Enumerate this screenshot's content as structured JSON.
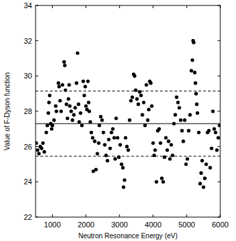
{
  "chart_data": {
    "type": "scatter",
    "x_label": "Neutron Resonance Energy (eV)",
    "y_label": "Value of F-Dyson function",
    "xlim": [
      500,
      6000
    ],
    "ylim": [
      22,
      34
    ],
    "xticks": [
      1000,
      2000,
      3000,
      4000,
      5000,
      6000
    ],
    "yticks": [
      22,
      24,
      26,
      28,
      30,
      32,
      34
    ],
    "grid": false,
    "series": [
      {
        "type": "scatter",
        "color": "#000000",
        "marker": "circle",
        "x": [
          520,
          560,
          600,
          640,
          680,
          720,
          760,
          820,
          850,
          880,
          900,
          920,
          950,
          980,
          1000,
          1050,
          1100,
          1120,
          1180,
          1200,
          1230,
          1260,
          1300,
          1350,
          1370,
          1390,
          1420,
          1450,
          1480,
          1500,
          1520,
          1560,
          1600,
          1640,
          1680,
          1720,
          1750,
          1780,
          1800,
          1840,
          1880,
          1920,
          1950,
          1980,
          2000,
          2030,
          2060,
          2080,
          2100,
          2130,
          2160,
          2200,
          2220,
          2260,
          2300,
          2340,
          2380,
          2400,
          2440,
          2480,
          2520,
          2560,
          2600,
          2640,
          2680,
          2720,
          2760,
          2800,
          2840,
          2870,
          2900,
          2940,
          2980,
          3020,
          3060,
          3100,
          3120,
          3150,
          3180,
          3220,
          3260,
          3300,
          3340,
          3380,
          3420,
          3450,
          3480,
          3520,
          3560,
          3600,
          3640,
          3680,
          3720,
          3760,
          3800,
          3840,
          3870,
          3900,
          3930,
          3960,
          4000,
          4030,
          4060,
          4100,
          4140,
          4180,
          4220,
          4260,
          4300,
          4340,
          4380,
          4420,
          4460,
          4500,
          4540,
          4580,
          4620,
          4660,
          4700,
          4740,
          4780,
          4820,
          4860,
          4900,
          4940,
          4980,
          5020,
          5060,
          5100,
          5140,
          5170,
          5190,
          5210,
          5240,
          5260,
          5280,
          5300,
          5320,
          5360,
          5400,
          5430,
          5460,
          5500,
          5540,
          5580,
          5620,
          5660,
          5700,
          5740,
          5780,
          5820,
          5860,
          5900,
          5940,
          5980
        ],
        "values": [
          26.2,
          25.8,
          25.6,
          26.0,
          25.9,
          26.2,
          25.7,
          26.8,
          27.2,
          27.9,
          28.5,
          28.9,
          27.3,
          27.0,
          27.2,
          27.5,
          28.3,
          28.0,
          29.6,
          29.4,
          28.6,
          28.0,
          29.5,
          30.8,
          30.6,
          29.2,
          28.4,
          27.6,
          28.7,
          29.5,
          28.3,
          28.0,
          27.5,
          27.8,
          28.2,
          29.6,
          31.3,
          28.4,
          27.4,
          27.9,
          27.2,
          29.7,
          28.9,
          29.4,
          28.3,
          28.1,
          29.7,
          28.5,
          28.0,
          27.4,
          26.8,
          26.5,
          24.6,
          26.3,
          24.7,
          25.6,
          26.2,
          27.2,
          27.7,
          27.5,
          26.8,
          26.1,
          25.5,
          25.2,
          26.4,
          25.9,
          26.8,
          27.0,
          26.5,
          25.3,
          27.6,
          26.5,
          25.4,
          26.1,
          25.0,
          24.8,
          23.7,
          24.1,
          26.5,
          26.0,
          25.8,
          27.5,
          28.6,
          28.8,
          30.1,
          30.0,
          29.2,
          28.7,
          28.4,
          29.1,
          28.9,
          27.8,
          28.5,
          27.2,
          29.5,
          27.5,
          28.1,
          29.7,
          29.6,
          28.3,
          26.2,
          25.5,
          25.8,
          24.0,
          26.9,
          27.0,
          26.2,
          24.2,
          24.0,
          25.4,
          26.5,
          25.8,
          26.3,
          25.3,
          26.1,
          25.5,
          27.3,
          27.8,
          28.8,
          28.5,
          28.2,
          27.5,
          26.9,
          26.3,
          27.5,
          25.0,
          25.3,
          26.9,
          27.8,
          30.3,
          30.9,
          32.0,
          31.9,
          30.2,
          29.6,
          29.0,
          28.4,
          27.9,
          26.8,
          23.9,
          24.5,
          25.2,
          23.7,
          24.2,
          25.0,
          26.8,
          26.9,
          24.8,
          25.9,
          28.0,
          27.0,
          26.8,
          25.8,
          26.5,
          27.2
        ]
      },
      {
        "type": "line",
        "color": "#000000",
        "line_style": "solid",
        "x": [
          500,
          6000
        ],
        "values": [
          27.3,
          27.3
        ]
      },
      {
        "type": "line",
        "color": "#000000",
        "line_style": "dashed",
        "x": [
          500,
          6000
        ],
        "values": [
          29.15,
          29.15
        ]
      },
      {
        "type": "line",
        "color": "#000000",
        "line_style": "dashed",
        "x": [
          500,
          6000
        ],
        "values": [
          25.45,
          25.45
        ]
      }
    ]
  }
}
